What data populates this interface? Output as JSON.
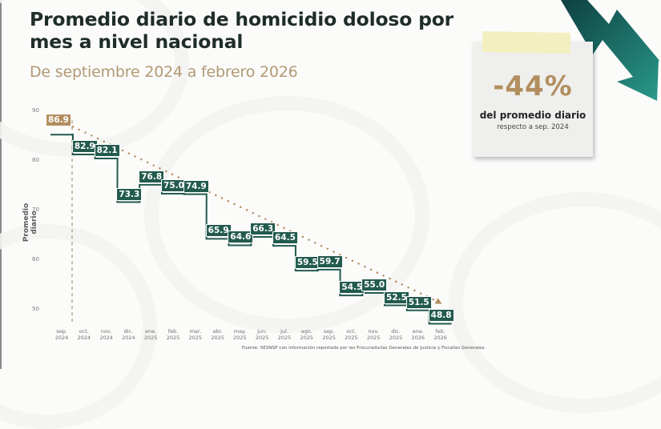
{
  "header": {
    "title": "Promedio diario de homicidio doloso por mes a nivel nacional",
    "subtitle": "De septiembre 2024 a febrero 2026"
  },
  "callout": {
    "value": "-44%",
    "line1": "del promedio diario",
    "line2": "respecto a sep. 2024"
  },
  "footer": {
    "source": "Fuente: SESNSP con información reportada por las Procuradurías Generales de Justicia y Fiscalías Generales."
  },
  "colors": {
    "bar_green": "#235b4e",
    "gold": "#b28e5f",
    "title": "#1f2d28",
    "subtitle": "#b29a74",
    "arrow_dark": "#0f4a4a",
    "arrow_light": "#2a9a8c"
  },
  "chart_data": {
    "type": "line",
    "subtype": "step",
    "title": "Promedio diario de homicidio doloso por mes a nivel nacional",
    "subtitle": "De septiembre 2024 a febrero 2026",
    "xlabel": "",
    "ylabel": "Promedio diario",
    "ylim": [
      48,
      90
    ],
    "yticks": [
      50,
      60,
      70,
      80,
      90
    ],
    "grid": false,
    "categories": [
      "sep. 2024",
      "oct. 2024",
      "nov. 2024",
      "dic. 2024",
      "ene. 2025",
      "feb. 2025",
      "mar. 2025",
      "abr. 2025",
      "may. 2025",
      "jun. 2025",
      "jul. 2025",
      "ago. 2025",
      "sep. 2025",
      "oct. 2025",
      "nov. 2025",
      "dic. 2025",
      "ene. 2026",
      "feb. 2026"
    ],
    "series": [
      {
        "name": "Promedio diario",
        "values": [
          86.9,
          82.9,
          82.1,
          73.3,
          76.8,
          75.0,
          74.9,
          65.9,
          64.6,
          66.3,
          64.5,
          59.5,
          59.7,
          54.5,
          55.0,
          52.5,
          51.5,
          48.8
        ]
      }
    ],
    "annotations": [
      {
        "type": "trend-line-dotted",
        "from": "sep. 2024",
        "to": "feb. 2026",
        "start": 86.9,
        "end": 48.8
      },
      {
        "type": "vertical-dashed-line",
        "at": "sep. 2024"
      },
      {
        "type": "callout",
        "text": "-44% del promedio diario respecto a sep. 2024"
      }
    ],
    "source": "Fuente: SESNSP con información reportada por las Procuradurías Generales de Justicia y Fiscalías Generales."
  }
}
